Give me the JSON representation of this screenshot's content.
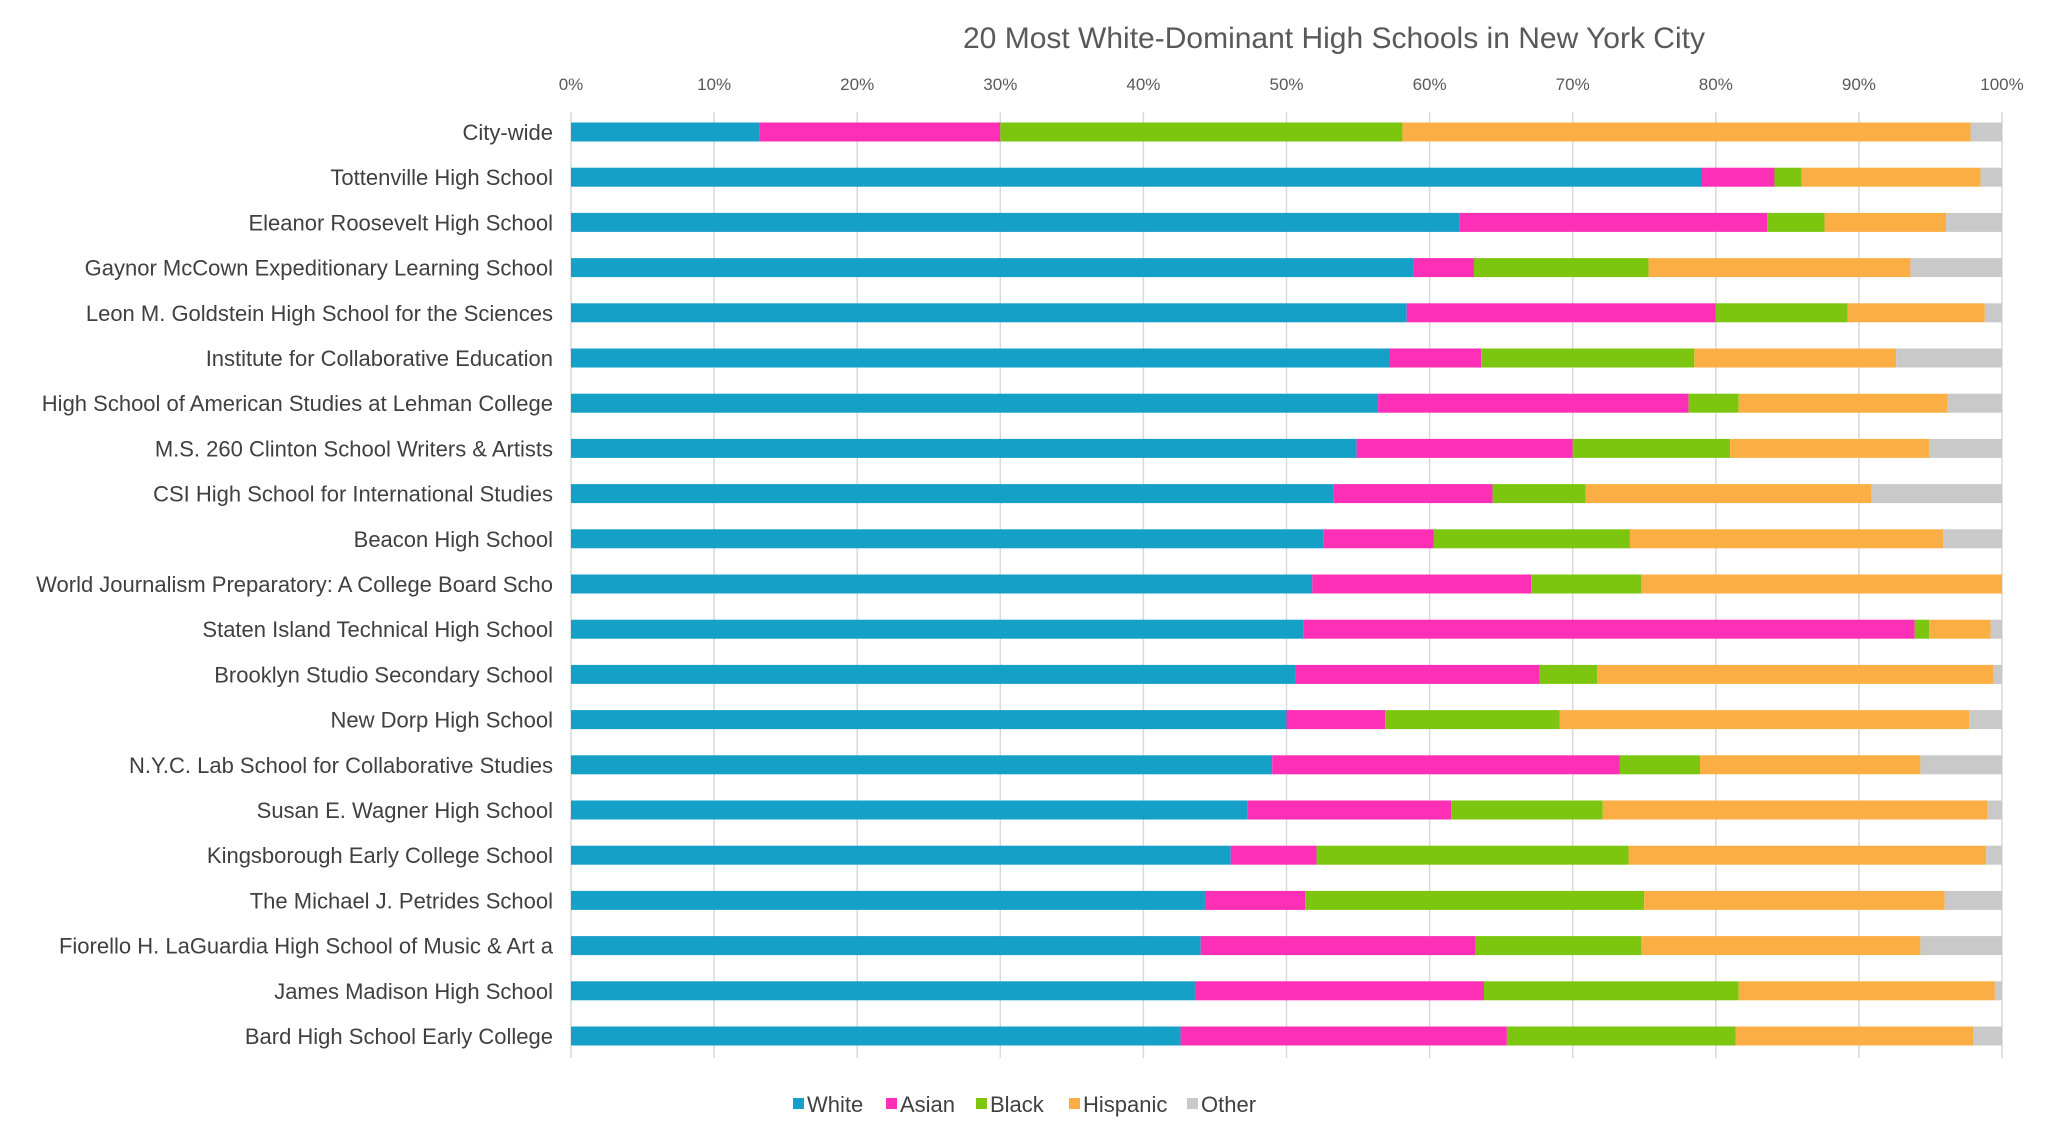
{
  "chart_data": {
    "type": "bar",
    "orientation": "horizontal",
    "stacked": "percent",
    "title": "20 Most White-Dominant High Schools in New York City",
    "xlabel": "",
    "ylabel": "",
    "xlim": [
      0,
      100
    ],
    "x_ticks": [
      "0%",
      "10%",
      "20%",
      "30%",
      "40%",
      "50%",
      "60%",
      "70%",
      "80%",
      "90%",
      "100%"
    ],
    "x_axis_position": "top",
    "grid": true,
    "legend_position": "bottom",
    "categories": [
      "City-wide",
      "Tottenville High School",
      "Eleanor Roosevelt High School",
      "Gaynor McCown Expeditionary Learning School",
      "Leon M. Goldstein High School for the Sciences",
      "Institute for Collaborative Education",
      "High School of American Studies at Lehman College",
      "M.S. 260 Clinton School Writers & Artists",
      "CSI High School for International Studies",
      "Beacon High School",
      "World Journalism Preparatory: A College Board Scho",
      "Staten Island Technical High School",
      "Brooklyn Studio Secondary School",
      "New Dorp High School",
      "N.Y.C. Lab School for Collaborative Studies",
      "Susan E. Wagner High School",
      "Kingsborough Early College School",
      "The Michael J. Petrides School",
      "Fiorello H. LaGuardia High School of Music & Art a",
      "James Madison High School",
      "Bard High School Early College"
    ],
    "series": [
      {
        "name": "White",
        "color": "#15a0c8",
        "values": [
          13.2,
          79.0,
          62.1,
          58.9,
          58.4,
          57.2,
          56.4,
          54.9,
          53.3,
          52.6,
          51.8,
          51.2,
          50.6,
          50.0,
          49.0,
          47.3,
          46.1,
          44.3,
          44.0,
          43.6,
          42.6
        ]
      },
      {
        "name": "Asian",
        "color": "#fc2fb6",
        "values": [
          16.8,
          5.1,
          21.5,
          4.2,
          21.6,
          6.4,
          21.7,
          15.1,
          11.1,
          7.7,
          15.3,
          42.7,
          17.1,
          6.9,
          24.3,
          14.2,
          6.0,
          7.0,
          19.2,
          20.2,
          22.8
        ]
      },
      {
        "name": "Black",
        "color": "#7dc60f",
        "values": [
          28.1,
          1.9,
          4.0,
          12.2,
          9.2,
          14.9,
          3.5,
          11.0,
          6.5,
          13.7,
          7.7,
          1.0,
          4.0,
          12.2,
          5.6,
          10.6,
          21.8,
          23.7,
          11.6,
          17.8,
          16.0
        ]
      },
      {
        "name": "Hispanic",
        "color": "#fbae43",
        "values": [
          39.7,
          12.5,
          8.5,
          18.3,
          9.6,
          14.1,
          14.6,
          13.9,
          20.0,
          21.9,
          25.2,
          4.3,
          27.7,
          28.6,
          15.4,
          26.9,
          25.0,
          21.0,
          19.5,
          17.9,
          16.6
        ]
      },
      {
        "name": "Other",
        "color": "#c9c9c9",
        "values": [
          2.2,
          1.5,
          3.9,
          6.4,
          1.2,
          7.4,
          3.8,
          5.1,
          9.1,
          4.1,
          0.0,
          0.8,
          0.6,
          2.3,
          5.7,
          1.0,
          1.1,
          4.0,
          5.7,
          0.5,
          2.0
        ]
      }
    ]
  }
}
